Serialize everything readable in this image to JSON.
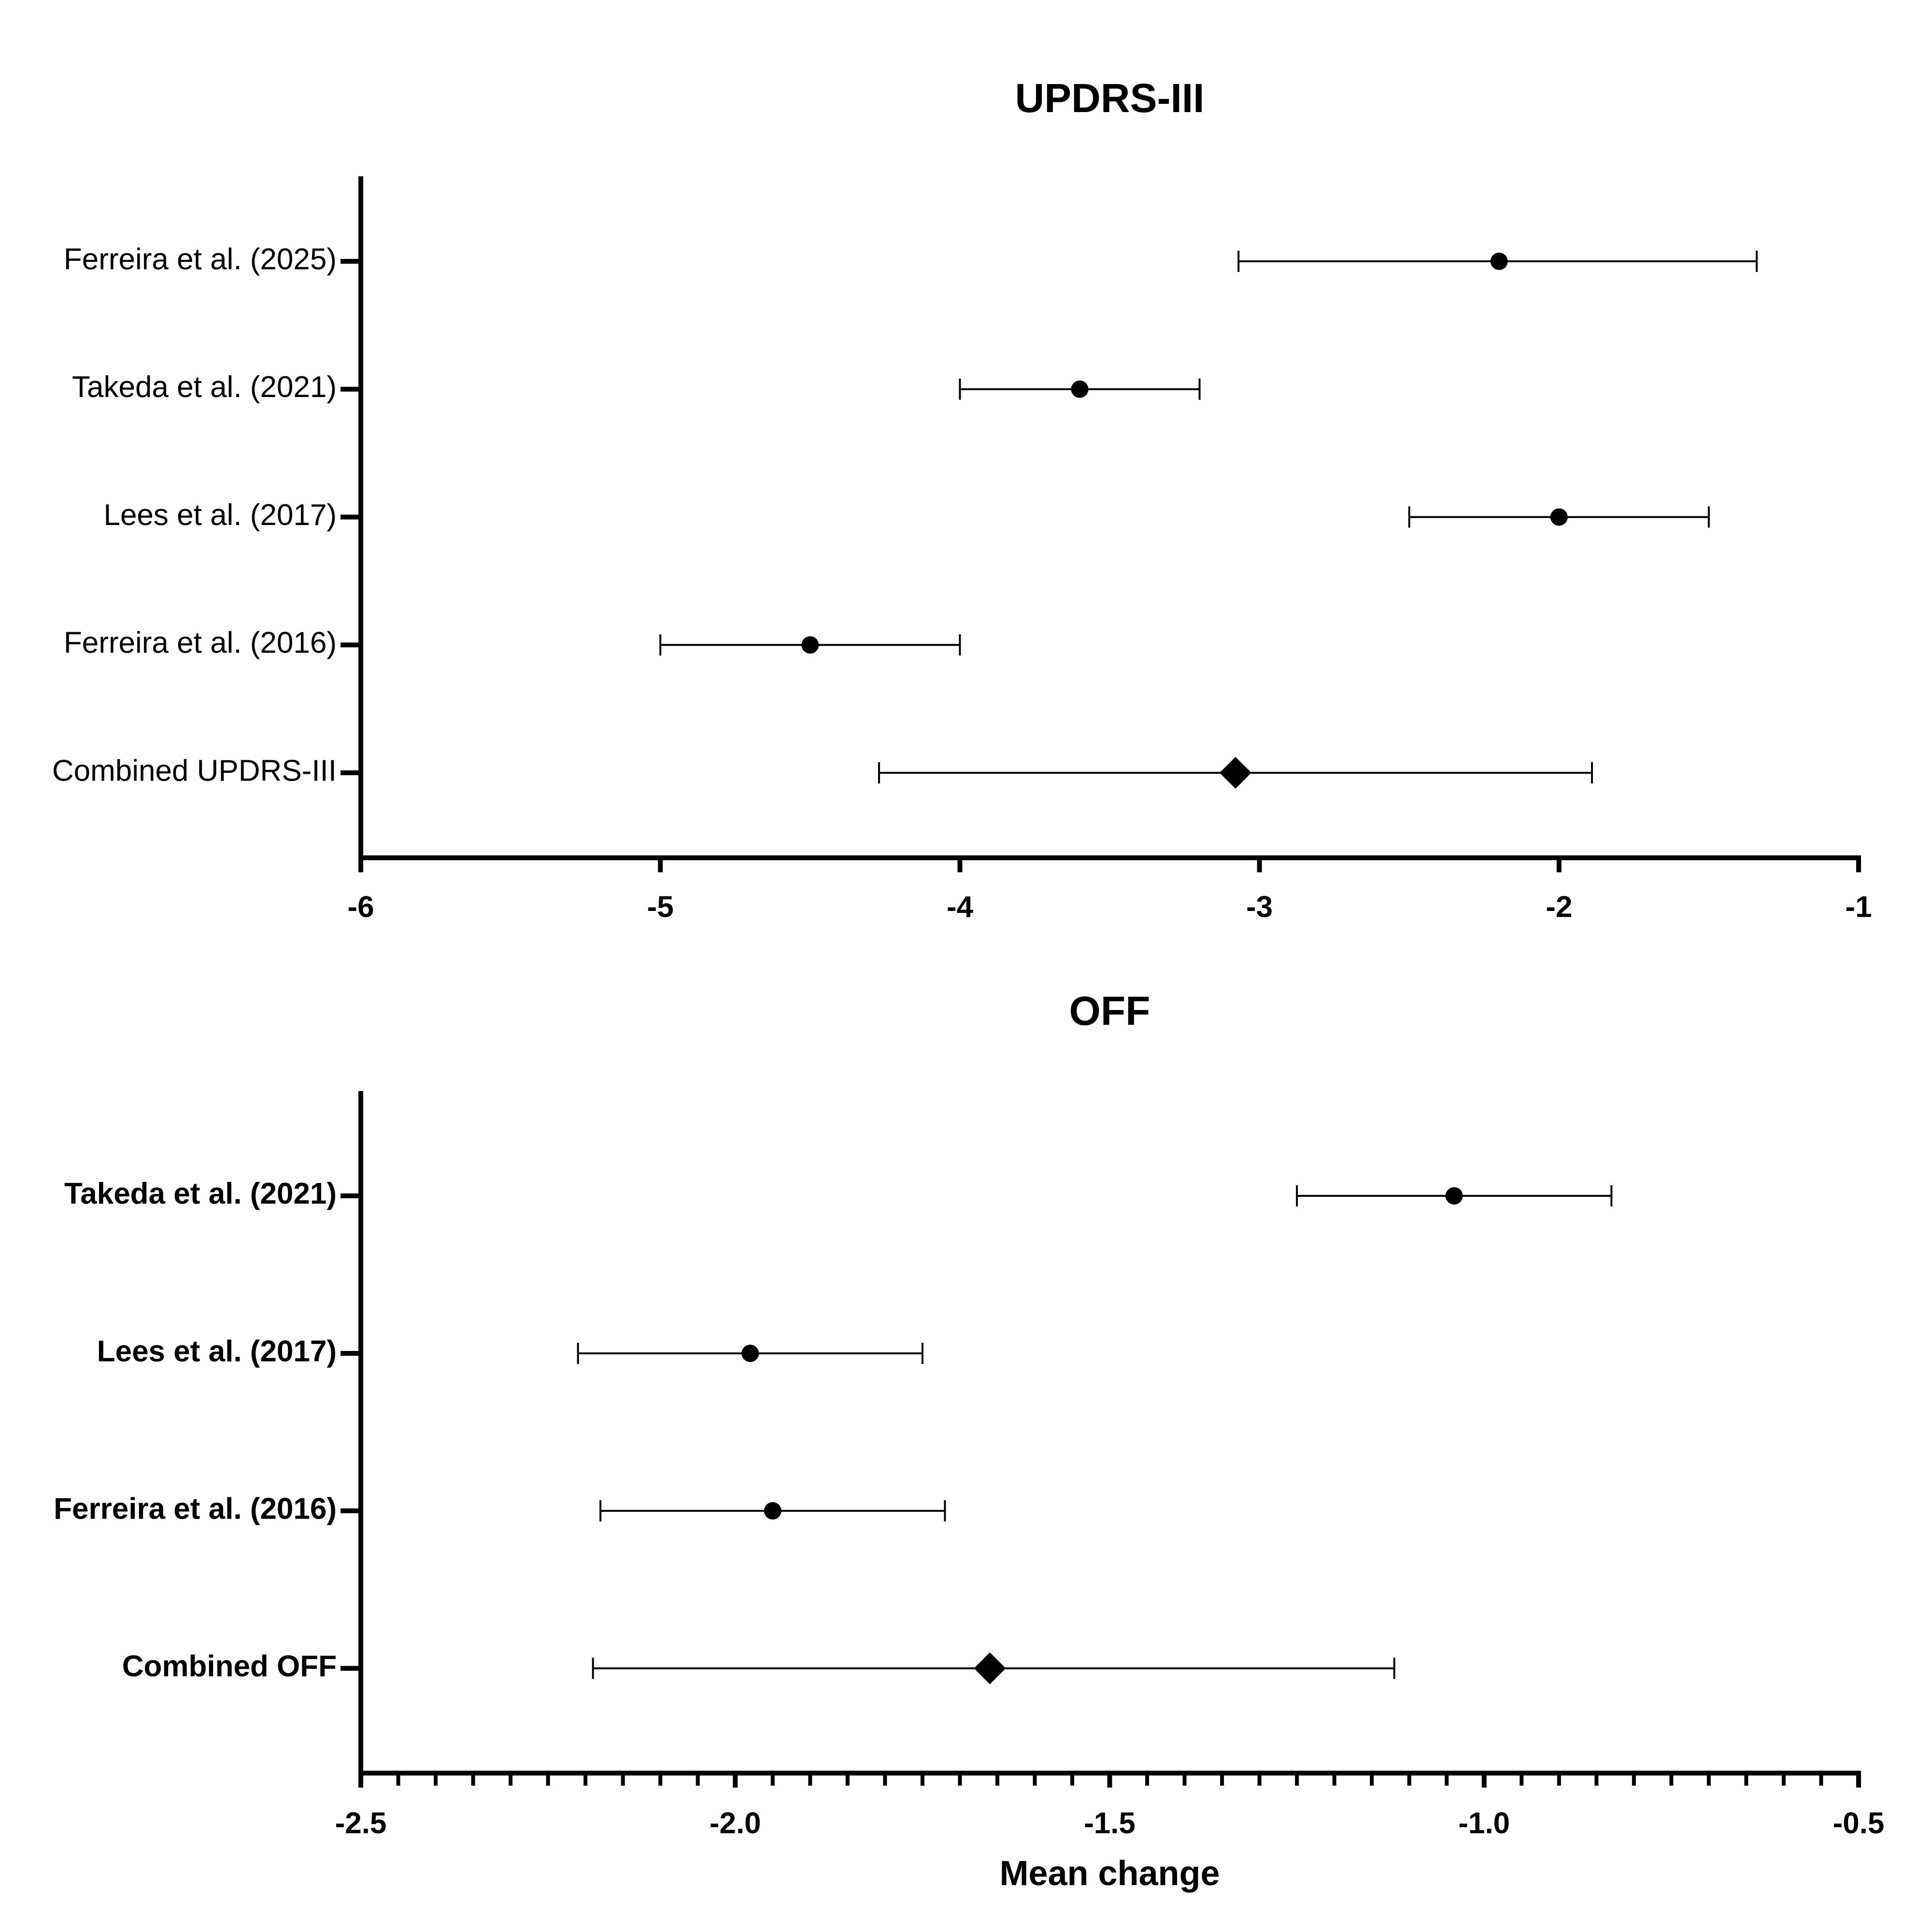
{
  "chart_data": [
    {
      "type": "forest",
      "title": "UPDRS-III",
      "categories": [
        "Ferreira et al. (2025)",
        "Takeda et al. (2021)",
        "Lees et al. (2017)",
        "Ferreira et al. (2016)",
        "Combined UPDRS-III"
      ],
      "values": [
        -2.2,
        -3.6,
        -2.0,
        -4.5,
        -3.08
      ],
      "lower": [
        -3.07,
        -4.0,
        -2.5,
        -5.0,
        -4.27
      ],
      "upper": [
        -1.34,
        -3.2,
        -1.5,
        -4.0,
        -1.89
      ],
      "markers": [
        "circle",
        "circle",
        "circle",
        "circle",
        "diamond"
      ],
      "color": "#000000",
      "xlim": [
        -6,
        -1
      ],
      "xticks": [
        -6,
        -5,
        -4,
        -3,
        -2,
        -1
      ]
    },
    {
      "type": "forest",
      "title": "OFF",
      "xlabel": "Mean change",
      "categories": [
        "Takeda et al. (2021)",
        "Lees et al. (2017)",
        "Ferreira et al. (2016)",
        "Combined OFF"
      ],
      "values": [
        -1.04,
        -1.98,
        -1.95,
        -1.66
      ],
      "lower": [
        -1.25,
        -2.21,
        -2.18,
        -2.19
      ],
      "upper": [
        -0.83,
        -1.75,
        -1.72,
        -1.12
      ],
      "markers": [
        "circle",
        "circle",
        "circle",
        "diamond"
      ],
      "color": "#000000",
      "xlim": [
        -2.5,
        -0.5
      ],
      "xticks": [
        -2.5,
        {
          "value": -2,
          "label": "-2.0"
        },
        -1.5,
        {
          "value": -1,
          "label": "-1.0"
        },
        -0.5
      ],
      "xminorticks": [
        -2.45,
        -2.4,
        -2.35,
        -2.3,
        -2.25,
        -2.2,
        -2.15,
        -2.1,
        -2.05,
        -1.95,
        -1.9,
        -1.85,
        -1.8,
        -1.75,
        -1.7,
        -1.65,
        -1.6,
        -1.55,
        -1.45,
        -1.4,
        -1.35,
        -1.3,
        -1.25,
        -1.2,
        -1.15,
        -1.1,
        -1.05,
        -0.95,
        -0.9,
        -0.85,
        -0.8,
        -0.75,
        -0.7,
        -0.65,
        -0.6,
        -0.55
      ]
    }
  ]
}
